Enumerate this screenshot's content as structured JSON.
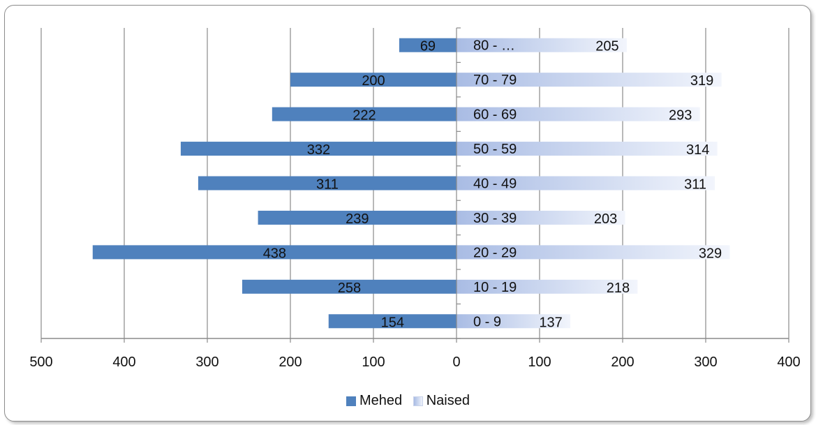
{
  "chart_data": {
    "type": "bar",
    "orientation": "horizontal",
    "title": "",
    "categories": [
      "0 - 9",
      "10 - 19",
      "20 - 29",
      "30 - 39",
      "40 - 49",
      "50 - 59",
      "60 - 69",
      "70 - 79",
      "80 - …"
    ],
    "series": [
      {
        "name": "Mehed",
        "values": [
          154,
          258,
          438,
          239,
          311,
          332,
          222,
          200,
          69
        ],
        "direction": "left"
      },
      {
        "name": "Naised",
        "values": [
          137,
          218,
          329,
          203,
          311,
          314,
          293,
          319,
          205
        ],
        "direction": "right"
      }
    ],
    "xlim": [
      -400,
      400
    ],
    "x_ticks": [
      -500,
      -400,
      -300,
      -200,
      -100,
      0,
      100,
      200,
      300,
      400
    ],
    "x_tick_labels": [
      "500",
      "400",
      "300",
      "200",
      "100",
      "0",
      "100",
      "200",
      "300",
      "400"
    ],
    "grid": true,
    "legend_position": "bottom",
    "colors": {
      "Mehed": "#4f81bd",
      "Naised": "#c6d4f0"
    }
  }
}
